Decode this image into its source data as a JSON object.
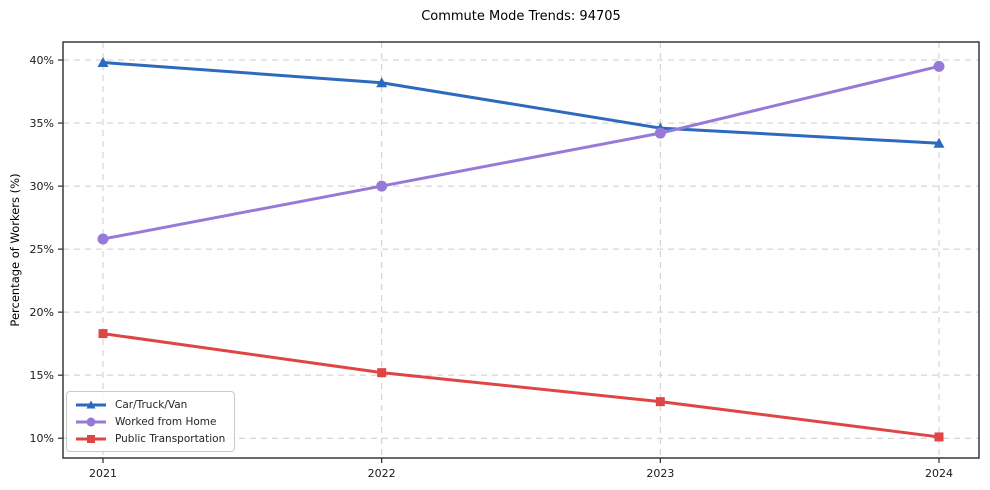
{
  "chart_data": {
    "type": "line",
    "title": "Commute Mode Trends: 94705",
    "xlabel": "",
    "ylabel": "Percentage of Workers (%)",
    "categories": [
      "2021",
      "2022",
      "2023",
      "2024"
    ],
    "series": [
      {
        "name": "Car/Truck/Van",
        "marker": "triangle",
        "color": "#2d6abe",
        "values": [
          39.8,
          38.2,
          34.6,
          33.4
        ]
      },
      {
        "name": "Worked from Home",
        "marker": "circle",
        "color": "#977ad8",
        "values": [
          25.8,
          30.0,
          34.2,
          39.5
        ]
      },
      {
        "name": "Public Transportation",
        "marker": "square",
        "color": "#e04545",
        "values": [
          18.3,
          15.2,
          12.9,
          10.1
        ]
      }
    ],
    "y_ticks": [
      10,
      15,
      20,
      25,
      30,
      35,
      40
    ],
    "y_tick_suffix": "%",
    "ylim": [
      8.43,
      41.43
    ],
    "grid": true,
    "legend_position": "lower-left",
    "colors": {
      "grid": "#cccccc",
      "axis": "#2b2b2b",
      "tick_text": "#1a1a1a",
      "background": "#ffffff"
    }
  }
}
